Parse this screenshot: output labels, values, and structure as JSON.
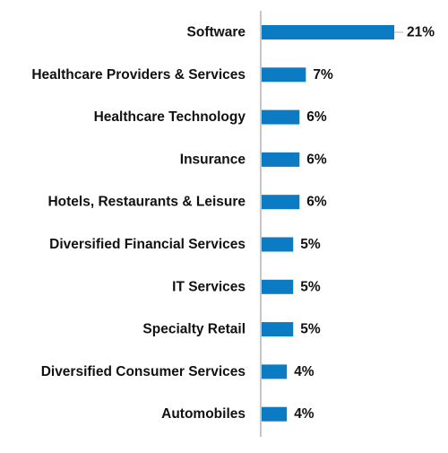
{
  "chart_data": {
    "type": "bar",
    "orientation": "horizontal",
    "title": "",
    "xlabel": "",
    "ylabel": "",
    "categories": [
      "Software",
      "Healthcare Providers & Services",
      "Healthcare Technology",
      "Insurance",
      "Hotels, Restaurants & Leisure",
      "Diversified Financial Services",
      "IT Services",
      "Specialty Retail",
      "Diversified Consumer Services",
      "Automobiles"
    ],
    "values": [
      21,
      7,
      6,
      6,
      6,
      5,
      5,
      5,
      4,
      4
    ],
    "value_labels": [
      "21%",
      "7%",
      "6%",
      "6%",
      "6%",
      "5%",
      "5%",
      "5%",
      "4%",
      "4%"
    ],
    "xlim": [
      0,
      21
    ],
    "grid": false,
    "legend": "none",
    "colors": {
      "bar": "#0b7bc4",
      "axis": "#b3b3b3",
      "text": "#111111"
    }
  }
}
